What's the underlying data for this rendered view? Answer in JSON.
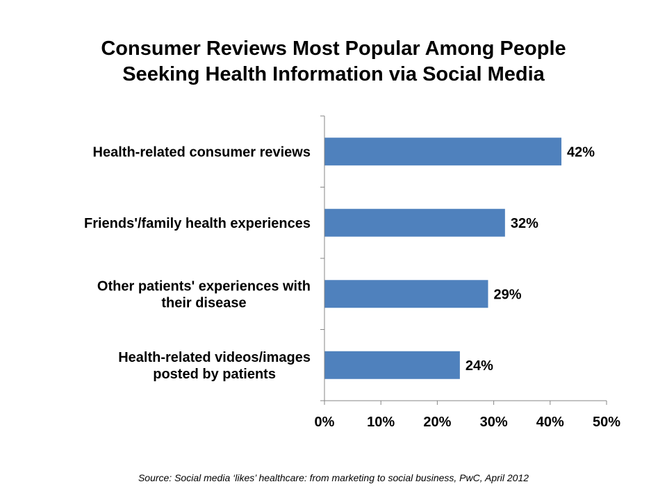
{
  "chart_data": {
    "type": "bar",
    "orientation": "horizontal",
    "title_lines": [
      "Consumer Reviews Most Popular Among People",
      "Seeking Health Information via Social Media"
    ],
    "categories": [
      [
        "Health-related consumer reviews"
      ],
      [
        "Friends'/family health experiences"
      ],
      [
        "Other patients' experiences with",
        "their disease"
      ],
      [
        "Health-related videos/images",
        "posted by patients"
      ]
    ],
    "values": [
      42,
      32,
      29,
      24
    ],
    "data_labels": [
      "42%",
      "32%",
      "29%",
      "24%"
    ],
    "xlim": [
      0,
      50
    ],
    "xticks": [
      0,
      10,
      20,
      30,
      40,
      50
    ],
    "xtick_labels": [
      "0%",
      "10%",
      "20%",
      "30%",
      "40%",
      "50%"
    ],
    "xlabel": "",
    "ylabel": "",
    "grid": false,
    "bar_color": "#4f81bd",
    "source": "Source: Social media ‘likes’ healthcare: from marketing to social business, PwC, April 2012"
  }
}
